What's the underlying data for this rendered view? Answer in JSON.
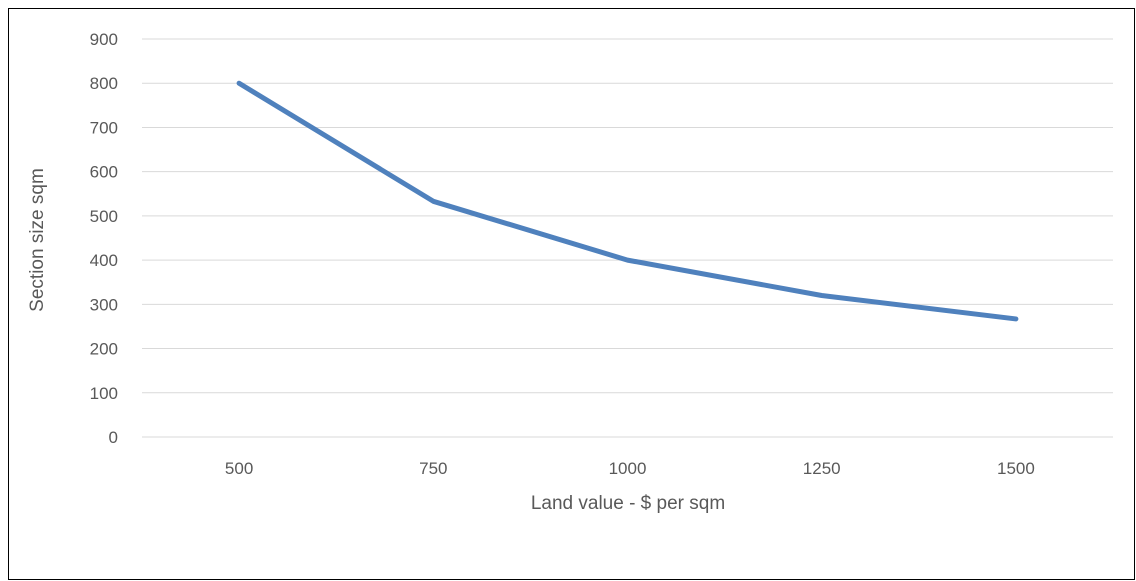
{
  "chart_data": {
    "type": "line",
    "title": "",
    "xlabel": "Land value - $ per sqm",
    "ylabel": "Section size sqm",
    "categories": [
      "500",
      "750",
      "1000",
      "1250",
      "1500"
    ],
    "series": [
      {
        "values": [
          800,
          533,
          400,
          320,
          267
        ]
      }
    ],
    "yticks": [
      "0",
      "100",
      "200",
      "300",
      "400",
      "500",
      "600",
      "700",
      "800",
      "900"
    ],
    "ylim": [
      0,
      900
    ],
    "grid": true,
    "legend": "none",
    "colors": {
      "line": "#4f81bd",
      "grid": "#d9d9d9",
      "text": "#595959"
    }
  }
}
